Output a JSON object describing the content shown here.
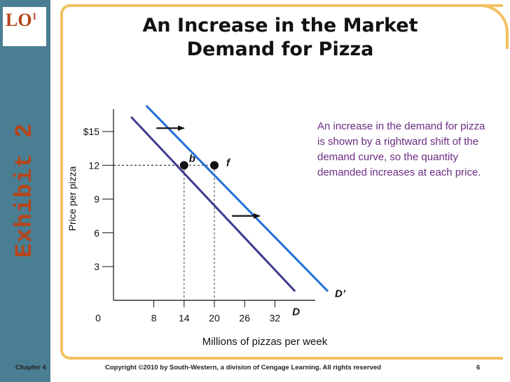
{
  "badge": {
    "lo_text": "LO",
    "lo_sup": "1",
    "exhibit": "Exhibit 2"
  },
  "title": {
    "line1": "An Increase in the Market",
    "line2": "Demand for Pizza"
  },
  "annotation": "An increase in the demand for pizza is shown by a rightward shift of the demand curve, so the quantity demanded increases at each price.",
  "footer": {
    "chapter": "Chapter 4",
    "copyright": "Copyright ©2010 by South-Western, a division of Cengage Learning.  All rights reserved",
    "page": "6"
  },
  "colors": {
    "sidebar": "#4a7e92",
    "accent": "#b5451b",
    "frame": "#f2c161",
    "demand": "#3b3b8f",
    "demand_shifted": "#1f6fd6",
    "note": "#6b2c82"
  },
  "chart_data": {
    "type": "line",
    "xlabel": "Millions of pizzas per week",
    "ylabel": "Price per pizza",
    "x_ticks": [
      {
        "value": 0,
        "label": "0"
      },
      {
        "value": 8,
        "label": "8"
      },
      {
        "value": 14,
        "label": "14"
      },
      {
        "value": 20,
        "label": "20"
      },
      {
        "value": 26,
        "label": "26"
      },
      {
        "value": 32,
        "label": "32"
      }
    ],
    "y_ticks": [
      {
        "value": 3,
        "label": "3"
      },
      {
        "value": 6,
        "label": "6"
      },
      {
        "value": 9,
        "label": "9"
      },
      {
        "value": 12,
        "label": "12"
      },
      {
        "value": 15,
        "label": "$15"
      }
    ],
    "xlim": [
      0,
      40
    ],
    "ylim": [
      0,
      17
    ],
    "series": [
      {
        "name": "D",
        "color": "#3b3b8f",
        "x": [
          3.5,
          36
        ],
        "y": [
          16.3,
          0.8
        ]
      },
      {
        "name": "D’",
        "color": "#1f6fd6",
        "x": [
          6.5,
          42.5
        ],
        "y": [
          17.3,
          0.8
        ]
      }
    ],
    "points": [
      {
        "label": "b",
        "x": 14,
        "y": 12
      },
      {
        "label": "f",
        "x": 20,
        "y": 12
      }
    ],
    "shift_arrows": [
      {
        "from": [
          8.5,
          15.3
        ],
        "to": [
          14,
          15.3
        ]
      },
      {
        "from": [
          23.5,
          7.5
        ],
        "to": [
          29,
          7.5
        ]
      }
    ],
    "grid": false
  }
}
